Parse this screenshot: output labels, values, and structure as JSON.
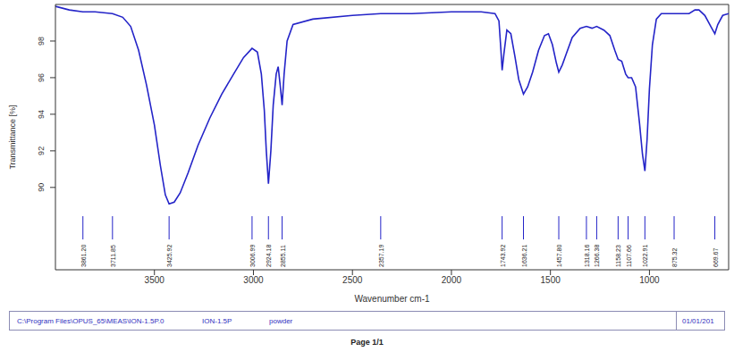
{
  "chart_data": {
    "type": "line",
    "x_label": "Wavenumber cm-1",
    "y_label": "Transmittance [%]",
    "xlim": [
      4000,
      600
    ],
    "ylim": [
      85.5,
      100
    ],
    "xticks": [
      3500,
      3000,
      2500,
      2000,
      1500,
      1000
    ],
    "yticks": [
      90,
      92,
      94,
      96,
      98
    ],
    "grid": false,
    "color": "#2424c8",
    "x": [
      4000,
      3930,
      3861.2,
      3800,
      3711.85,
      3660,
      3620,
      3580,
      3540,
      3500,
      3470,
      3445,
      3425.92,
      3400,
      3370,
      3330,
      3280,
      3220,
      3160,
      3100,
      3050,
      3006.99,
      2980,
      2960,
      2945,
      2935,
      2924.18,
      2912,
      2900,
      2885,
      2875,
      2865,
      2855.11,
      2845,
      2830,
      2800,
      2700,
      2500,
      2357.19,
      2200,
      2000,
      1850,
      1780,
      1760,
      1750,
      1743.92,
      1735,
      1720,
      1700,
      1680,
      1660,
      1636.21,
      1615,
      1590,
      1560,
      1530,
      1510,
      1490,
      1470,
      1457.8,
      1440,
      1420,
      1390,
      1350,
      1318.16,
      1290,
      1266.38,
      1230,
      1200,
      1175,
      1158.23,
      1140,
      1120,
      1107.66,
      1090,
      1070,
      1050,
      1035,
      1022.91,
      1012,
      1000,
      985,
      965,
      940,
      875.32,
      800,
      770,
      750,
      720,
      690,
      669.67,
      655,
      630,
      600
    ],
    "values": [
      99.9,
      99.7,
      99.6,
      99.6,
      99.5,
      99.3,
      98.8,
      97.5,
      95.6,
      93.4,
      91.2,
      89.6,
      89.1,
      89.2,
      89.7,
      90.8,
      92.3,
      93.8,
      95.1,
      96.2,
      97.1,
      97.6,
      97.4,
      96.2,
      94.2,
      92.0,
      90.2,
      92.0,
      94.5,
      96.2,
      96.6,
      95.6,
      94.5,
      96.2,
      98.0,
      98.9,
      99.2,
      99.4,
      99.5,
      99.5,
      99.6,
      99.6,
      99.5,
      99.1,
      97.5,
      96.4,
      97.3,
      98.6,
      98.4,
      97.2,
      95.9,
      95.1,
      95.5,
      96.3,
      97.5,
      98.3,
      98.4,
      97.8,
      96.8,
      96.3,
      96.7,
      97.3,
      98.2,
      98.7,
      98.8,
      98.7,
      98.8,
      98.6,
      98.3,
      97.5,
      97.0,
      96.9,
      96.2,
      96.0,
      96.0,
      95.5,
      93.5,
      91.8,
      90.9,
      92.6,
      95.4,
      97.8,
      99.2,
      99.5,
      99.5,
      99.5,
      99.7,
      99.7,
      99.4,
      98.8,
      98.4,
      98.9,
      99.4,
      99.5
    ],
    "annotations": [
      {
        "x": 3861.2,
        "label": "3861.20"
      },
      {
        "x": 3711.85,
        "label": "3711.85"
      },
      {
        "x": 3425.92,
        "label": "3425.92"
      },
      {
        "x": 3006.99,
        "label": "3006.99"
      },
      {
        "x": 2924.18,
        "label": "2924.18"
      },
      {
        "x": 2855.11,
        "label": "2855.11"
      },
      {
        "x": 2357.19,
        "label": "2357.19"
      },
      {
        "x": 1743.92,
        "label": "1743.92"
      },
      {
        "x": 1636.21,
        "label": "1636.21"
      },
      {
        "x": 1457.8,
        "label": "1457.80"
      },
      {
        "x": 1318.16,
        "label": "1318.16"
      },
      {
        "x": 1266.38,
        "label": "1266.38"
      },
      {
        "x": 1158.23,
        "label": "1158.23"
      },
      {
        "x": 1107.66,
        "label": "1107.66"
      },
      {
        "x": 1022.91,
        "label": "1022.91"
      },
      {
        "x": 875.32,
        "label": "875.32"
      },
      {
        "x": 669.67,
        "label": "669.67"
      }
    ]
  },
  "footer": {
    "path": "C:\\Program Files\\OPUS_65\\MEAS\\ION-1.5P.0",
    "sample": "ION-1.5P",
    "form": "powder",
    "date": "01/01/201"
  },
  "page": "Page 1/1"
}
